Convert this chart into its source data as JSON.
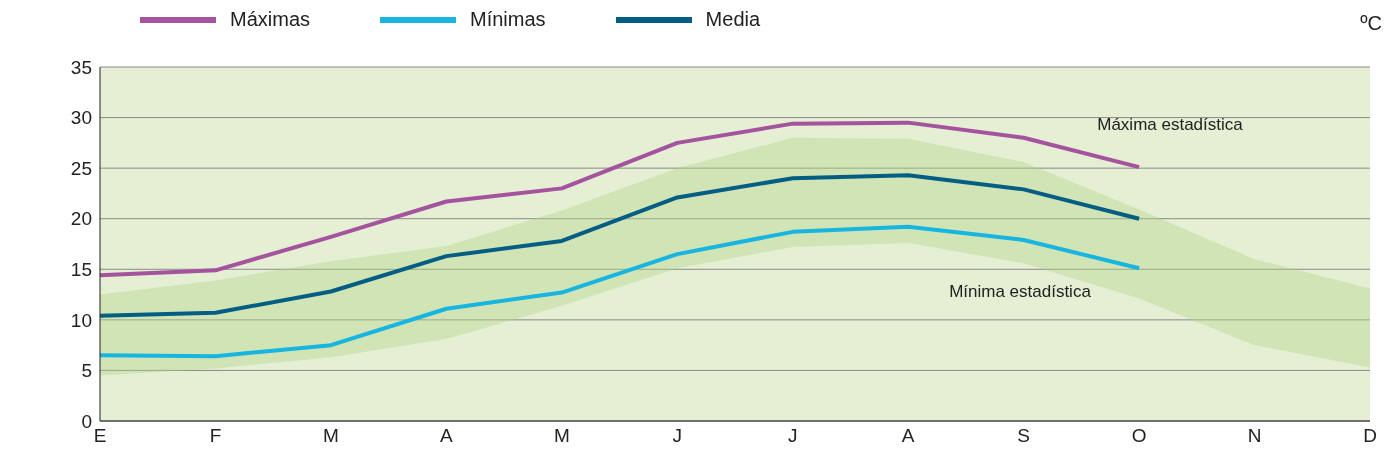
{
  "chart_data": {
    "type": "line",
    "ylabel": "ºC",
    "categories": [
      "E",
      "F",
      "M",
      "A",
      "M",
      "J",
      "J",
      "A",
      "S",
      "O",
      "N",
      "D"
    ],
    "series": [
      {
        "name": "Máximas",
        "color": "#a5529f",
        "values": [
          14.4,
          14.9,
          18.2,
          21.7,
          23.0,
          27.5,
          29.4,
          29.5,
          28.0,
          25.1,
          null,
          null
        ]
      },
      {
        "name": "Mínimas",
        "color": "#17b5e0",
        "values": [
          6.5,
          6.4,
          7.5,
          11.1,
          12.7,
          16.5,
          18.7,
          19.2,
          17.9,
          15.1,
          null,
          null
        ]
      },
      {
        "name": "Media",
        "color": "#045e84",
        "values": [
          10.4,
          10.7,
          12.8,
          16.3,
          17.8,
          22.1,
          24.0,
          24.3,
          22.9,
          20.0,
          null,
          null
        ],
        "lower": [
          4.5,
          5.2,
          6.3,
          8.1,
          11.4,
          15.1,
          17.2,
          17.6,
          15.6,
          12.1,
          7.5,
          5.3
        ],
        "upper": [
          12.5,
          13.9,
          15.8,
          17.3,
          20.8,
          25.0,
          28.0,
          27.9,
          25.6,
          20.9,
          16.0,
          13.1
        ]
      }
    ],
    "ylim": [
      0,
      35
    ],
    "yticks": [
      0,
      5,
      10,
      15,
      20,
      25,
      30,
      35
    ],
    "grid": "y",
    "legend": "top left",
    "annotations": [
      "Máxima estadística",
      "Mínima estadística"
    ]
  }
}
